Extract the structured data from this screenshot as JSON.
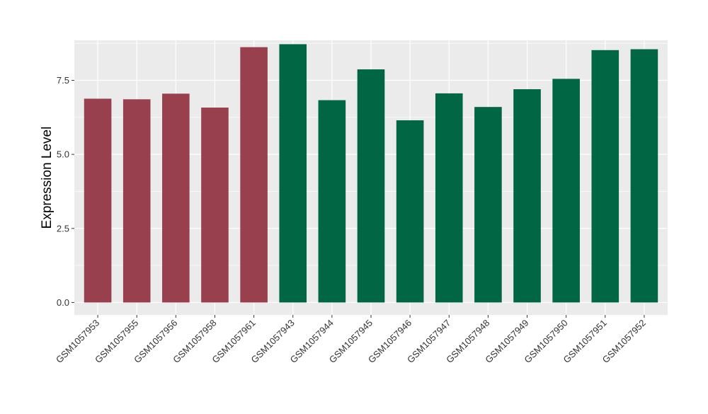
{
  "chart_data": {
    "type": "bar",
    "title": "",
    "xlabel": "",
    "ylabel": "Expression Level",
    "ylim": [
      -0.42,
      8.85
    ],
    "yticks": [
      0.0,
      2.5,
      5.0,
      7.5
    ],
    "ytick_labels": [
      "0.0",
      "2.5",
      "5.0",
      "7.5"
    ],
    "grid": true,
    "legend": "none",
    "background_color": "#ebebeb",
    "categories": [
      "GSM1057953",
      "GSM1057955",
      "GSM1057956",
      "GSM1057958",
      "GSM1057961",
      "GSM1057943",
      "GSM1057944",
      "GSM1057945",
      "GSM1057946",
      "GSM1057947",
      "GSM1057948",
      "GSM1057949",
      "GSM1057950",
      "GSM1057951",
      "GSM1057952"
    ],
    "values": [
      6.88,
      6.86,
      7.05,
      6.58,
      8.62,
      8.72,
      6.83,
      7.87,
      6.15,
      7.06,
      6.6,
      7.2,
      7.55,
      8.52,
      8.55
    ],
    "colors": [
      "#99404f",
      "#99404f",
      "#99404f",
      "#99404f",
      "#99404f",
      "#006644",
      "#006644",
      "#006644",
      "#006644",
      "#006644",
      "#006644",
      "#006644",
      "#006644",
      "#006644",
      "#006644"
    ]
  }
}
